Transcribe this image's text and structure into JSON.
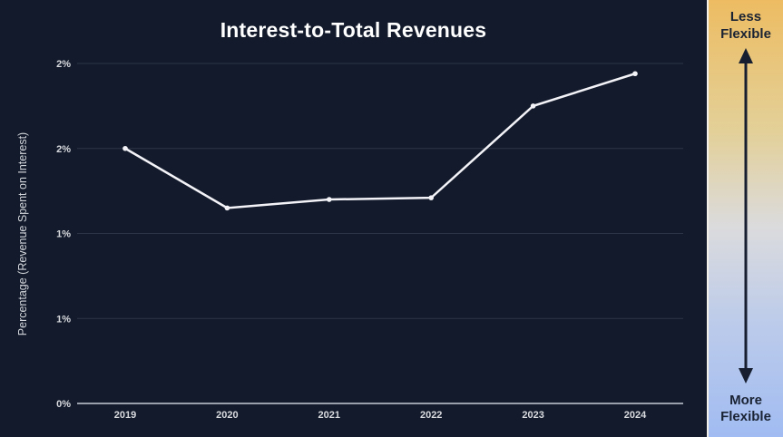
{
  "title": "Interest-to-Total Revenues",
  "chart_data": {
    "type": "line",
    "title": "Interest-to-Total Revenues",
    "x": [
      "2019",
      "2020",
      "2021",
      "2022",
      "2023",
      "2024"
    ],
    "series": [
      {
        "name": "Interest-to-Total Revenues",
        "values": [
          1.5,
          1.15,
          1.2,
          1.21,
          1.75,
          1.94
        ]
      }
    ],
    "xlabel": "",
    "ylabel": "Percentage (Revenue Spent on Interest)",
    "ylim": [
      0,
      2
    ],
    "yticks": [
      {
        "value": 0,
        "label": "0%"
      },
      {
        "value": 0.5,
        "label": "1%"
      },
      {
        "value": 1,
        "label": "1%"
      },
      {
        "value": 1.5,
        "label": "2%"
      },
      {
        "value": 2,
        "label": "2%"
      }
    ],
    "grid": true,
    "legend_position": "none",
    "units": "percent"
  },
  "colors": {
    "background": "#121a2b",
    "line": "#f3f3f8",
    "gridline": "#2c3547",
    "axis": "#9ba1ac",
    "tick_label": "#d9dbdf",
    "title_text": "#ffffff",
    "panel_gradient_top": "#edbc62",
    "panel_gradient_bottom": "#a1bcf2",
    "panel_text": "#1a2333",
    "panel_arrow": "#161e30"
  },
  "side_panel": {
    "top_label": "Less Flexible",
    "bottom_label": "More Flexible",
    "arrow_icon": "double-vertical-arrow"
  }
}
